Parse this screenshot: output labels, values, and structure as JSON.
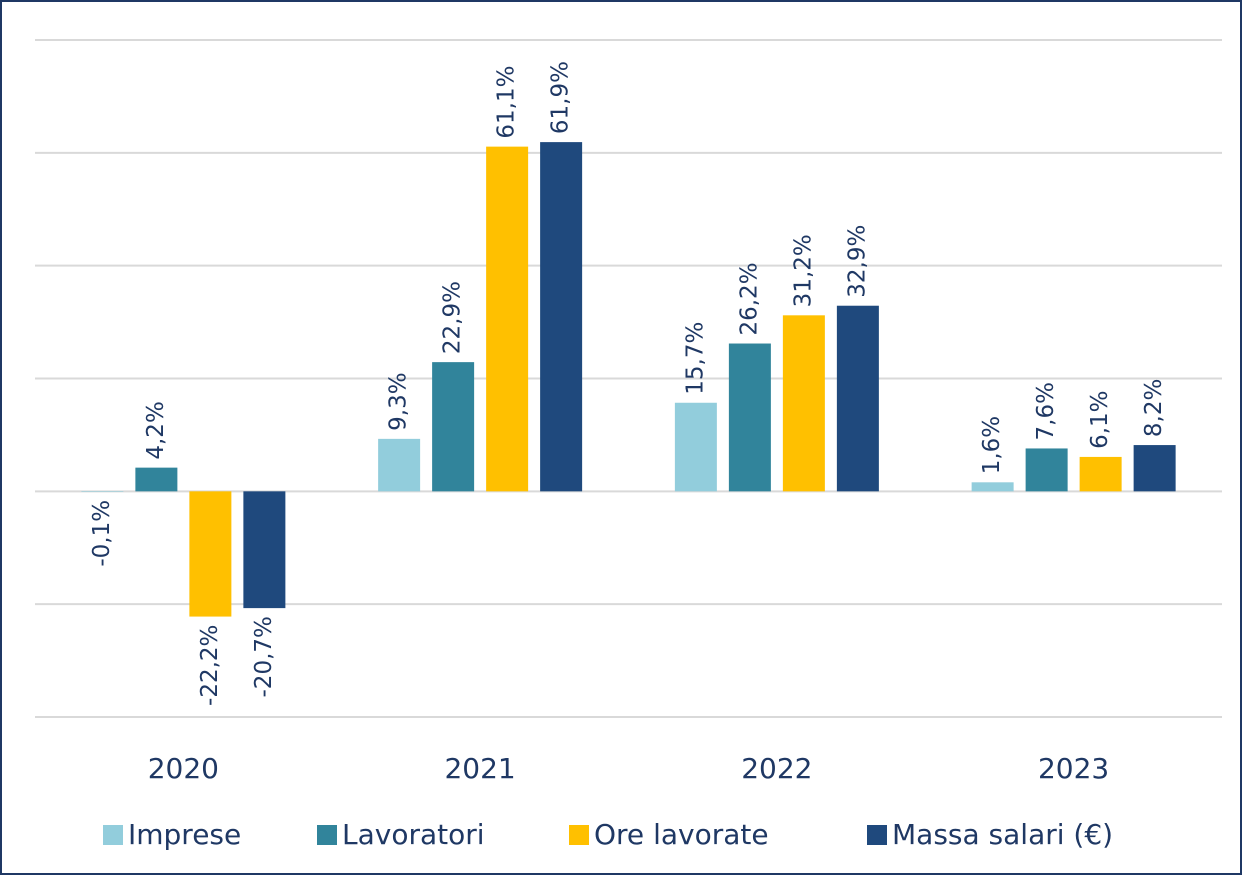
{
  "chart_data": {
    "type": "bar",
    "categories": [
      "2020",
      "2021",
      "2022",
      "2023"
    ],
    "series": [
      {
        "name": "Imprese",
        "color": "#92cddc",
        "values": [
          -0.1,
          9.3,
          15.7,
          1.6
        ],
        "value_labels": [
          "-0,1%",
          "9,3%",
          "15,7%",
          "1,6%"
        ]
      },
      {
        "name": "Lavoratori",
        "color": "#31849b",
        "values": [
          4.2,
          22.9,
          26.2,
          7.6
        ],
        "value_labels": [
          "4,2%",
          "22,9%",
          "26,2%",
          "7,6%"
        ]
      },
      {
        "name": "Ore lavorate",
        "color": "#ffc000",
        "values": [
          -22.2,
          61.1,
          31.2,
          6.1
        ],
        "value_labels": [
          "-22,2%",
          "61,1%",
          "31,2%",
          "6,1%"
        ]
      },
      {
        "name": "Massa salari (€)",
        "color": "#1f497d",
        "values": [
          -20.7,
          61.9,
          32.9,
          8.2
        ],
        "value_labels": [
          "-20,7%",
          "61,9%",
          "32,9%",
          "8,2%"
        ]
      }
    ],
    "ylim": [
      -40,
      80
    ],
    "yticks": [
      -40,
      -20,
      0,
      20,
      40,
      60,
      80
    ],
    "grid": true,
    "legend": "bottom"
  }
}
